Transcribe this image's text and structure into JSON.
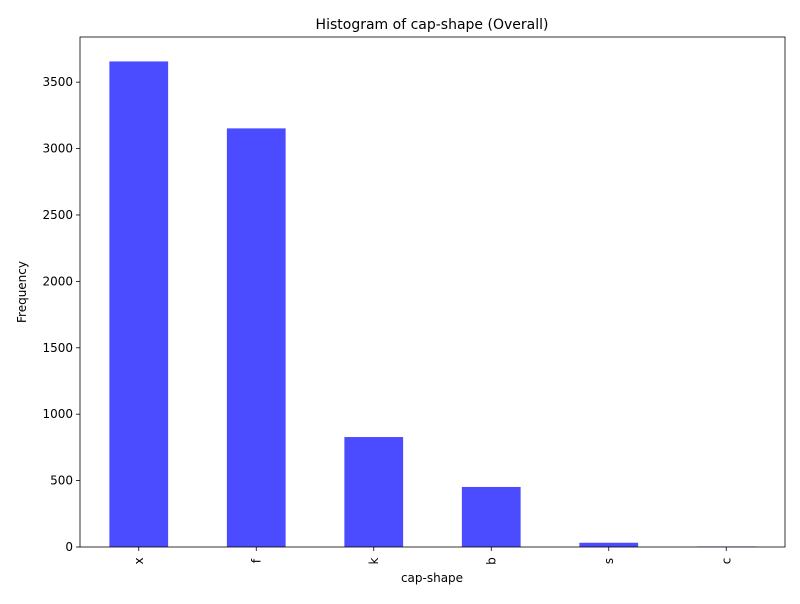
{
  "chart_data": {
    "type": "bar",
    "title": "Histogram of cap-shape (Overall)",
    "xlabel": "cap-shape",
    "ylabel": "Frequency",
    "categories": [
      "x",
      "f",
      "k",
      "b",
      "s",
      "c"
    ],
    "values": [
      3656,
      3152,
      828,
      452,
      32,
      4
    ],
    "ylim": [
      0,
      3840
    ],
    "yticks": [
      0,
      500,
      1000,
      1500,
      2000,
      2500,
      3000,
      3500
    ],
    "bar_color": "#4B4BFF",
    "grid": false,
    "legend": "none"
  }
}
